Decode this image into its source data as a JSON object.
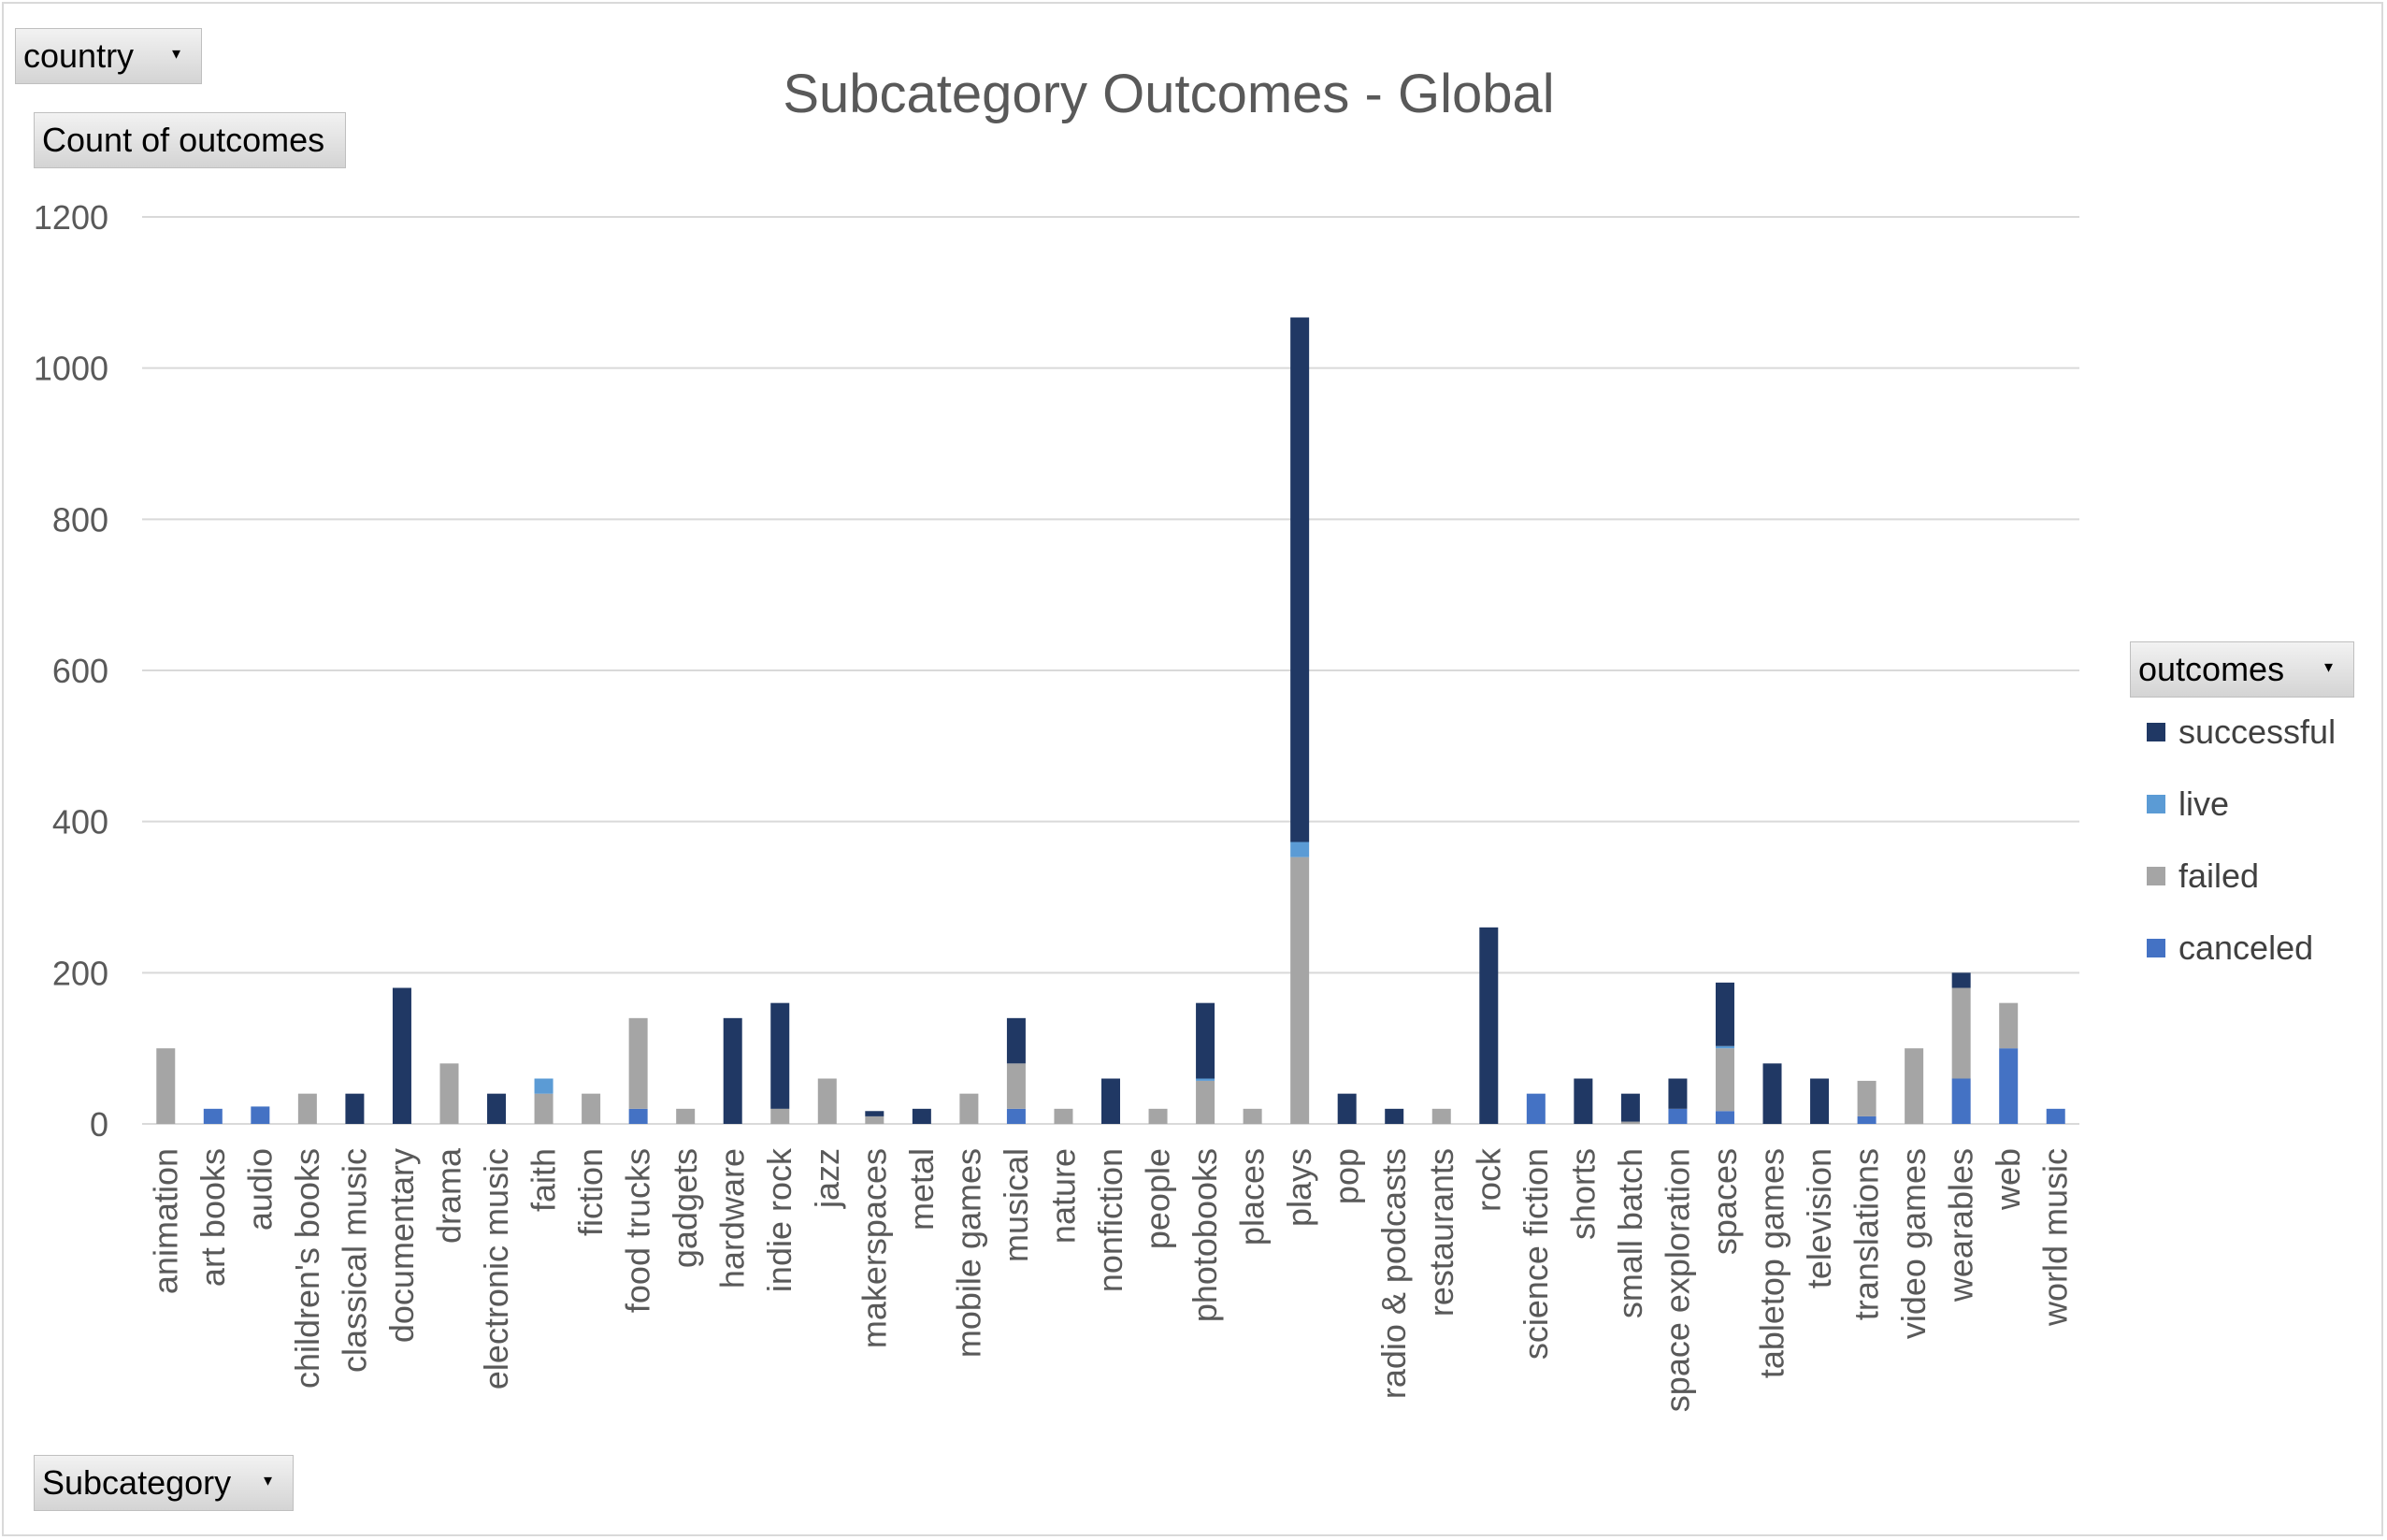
{
  "pivot": {
    "filter_field": "country",
    "value_field": "Count of outcomes",
    "axis_field": "Subcategory",
    "legend_field": "outcomes",
    "dropdown_icon": "chevron-down-icon"
  },
  "colors": {
    "successful": "#203864",
    "live": "#5b9bd5",
    "failed": "#a5a5a5",
    "canceled": "#4472c4",
    "grid": "#d9d9d9",
    "text": "#595959"
  },
  "chart_data": {
    "type": "bar",
    "stacked": true,
    "title": "Subcategory Outcomes - Global",
    "xlabel": "",
    "ylabel": "",
    "ylim": [
      0,
      1200
    ],
    "yticks": [
      0,
      200,
      400,
      600,
      800,
      1000,
      1200
    ],
    "grid": true,
    "legend_position": "right",
    "categories": [
      "animation",
      "art books",
      "audio",
      "children's books",
      "classical music",
      "documentary",
      "drama",
      "electronic music",
      "faith",
      "fiction",
      "food trucks",
      "gadgets",
      "hardware",
      "indie rock",
      "jazz",
      "makerspaces",
      "metal",
      "mobile games",
      "musical",
      "nature",
      "nonfiction",
      "people",
      "photobooks",
      "places",
      "plays",
      "pop",
      "radio & podcasts",
      "restaurants",
      "rock",
      "science fiction",
      "shorts",
      "small batch",
      "space exploration",
      "spaces",
      "tabletop games",
      "television",
      "translations",
      "video games",
      "wearables",
      "web",
      "world music"
    ],
    "series": [
      {
        "name": "canceled",
        "values": [
          0,
          20,
          23,
          0,
          0,
          0,
          0,
          0,
          0,
          0,
          20,
          0,
          0,
          0,
          0,
          0,
          0,
          0,
          20,
          0,
          0,
          0,
          0,
          0,
          0,
          0,
          0,
          0,
          0,
          40,
          0,
          0,
          20,
          17,
          0,
          0,
          10,
          0,
          60,
          100,
          20
        ]
      },
      {
        "name": "failed",
        "values": [
          100,
          0,
          0,
          40,
          0,
          0,
          80,
          0,
          40,
          40,
          120,
          20,
          0,
          20,
          60,
          10,
          0,
          40,
          60,
          20,
          0,
          20,
          57,
          20,
          353,
          0,
          0,
          20,
          0,
          0,
          0,
          3,
          0,
          83,
          0,
          0,
          47,
          100,
          120,
          60,
          0
        ]
      },
      {
        "name": "live",
        "values": [
          0,
          0,
          0,
          0,
          0,
          0,
          0,
          0,
          20,
          0,
          0,
          0,
          0,
          0,
          0,
          0,
          0,
          0,
          0,
          0,
          0,
          0,
          3,
          0,
          20,
          0,
          0,
          0,
          0,
          0,
          0,
          0,
          0,
          3,
          0,
          0,
          0,
          0,
          0,
          0,
          0
        ]
      },
      {
        "name": "successful",
        "values": [
          0,
          0,
          0,
          0,
          40,
          180,
          0,
          40,
          0,
          0,
          0,
          0,
          140,
          140,
          0,
          7,
          20,
          0,
          60,
          0,
          60,
          0,
          100,
          0,
          694,
          40,
          20,
          0,
          260,
          0,
          60,
          37,
          40,
          84,
          80,
          60,
          0,
          0,
          20,
          0,
          0
        ]
      }
    ],
    "legend_order": [
      "successful",
      "live",
      "failed",
      "canceled"
    ]
  }
}
